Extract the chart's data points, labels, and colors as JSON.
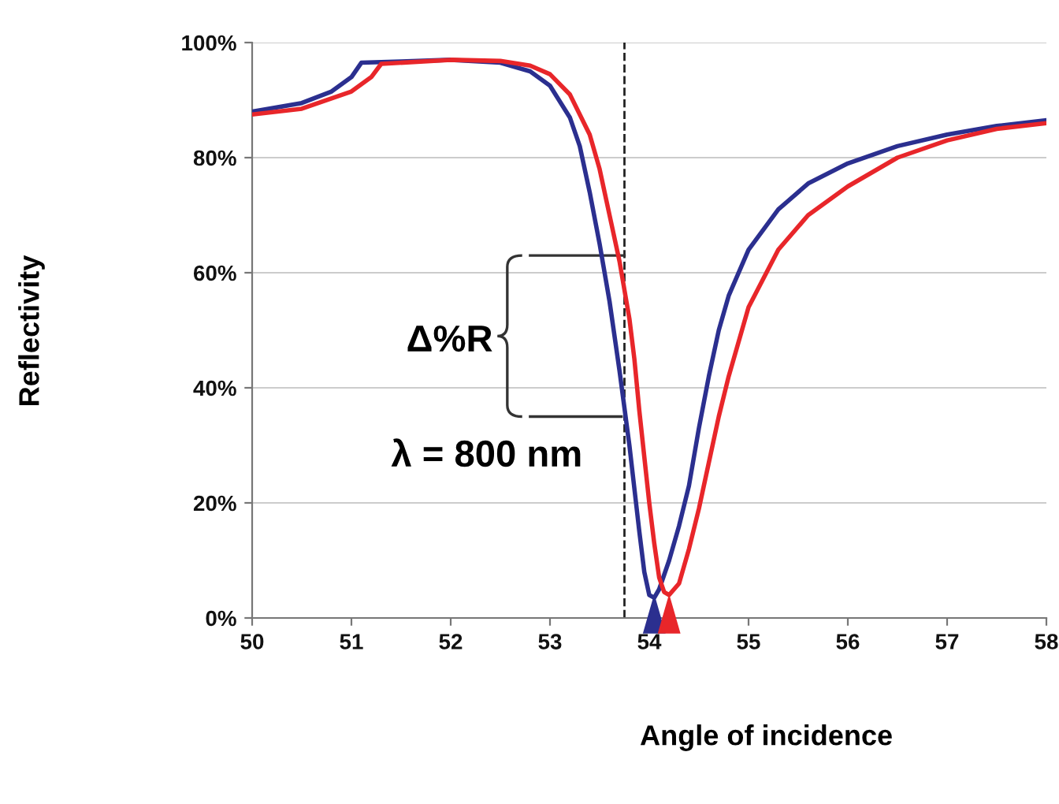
{
  "chart_data": {
    "type": "line",
    "xlabel": "Angle of incidence",
    "ylabel": "Reflectivity",
    "x": [
      50.0,
      50.5,
      50.8,
      51.0,
      51.1,
      51.5,
      52.0,
      52.5,
      52.8,
      53.0,
      53.2,
      53.3,
      53.4,
      53.5,
      53.6,
      53.7,
      53.8,
      53.9,
      53.95,
      54.0,
      54.05,
      54.1,
      54.2,
      54.3,
      54.4,
      54.5,
      54.6,
      54.7,
      54.8,
      55.0,
      55.3,
      55.6,
      56.0,
      56.5,
      57.0,
      57.5,
      58.0
    ],
    "series": [
      {
        "color": "#2b2f8f",
        "values": [
          88,
          89.5,
          91.5,
          94,
          96.5,
          96.7,
          97,
          96.5,
          95,
          92.5,
          87,
          82,
          74,
          65,
          55,
          43,
          30,
          15,
          8,
          4,
          3.5,
          5,
          10,
          16,
          23,
          33,
          42,
          50,
          56,
          64,
          71,
          75.5,
          79,
          82,
          84,
          85.5,
          86.5
        ]
      },
      {
        "color": "#e8262a",
        "x": [
          50.0,
          50.5,
          51.0,
          51.2,
          51.3,
          52.0,
          52.5,
          52.8,
          53.0,
          53.2,
          53.4,
          53.5,
          53.6,
          53.7,
          53.8,
          53.85,
          53.9,
          53.95,
          54.0,
          54.05,
          54.1,
          54.15,
          54.2,
          54.3,
          54.4,
          54.5,
          54.6,
          54.7,
          54.8,
          55.0,
          55.3,
          55.6,
          56.0,
          56.5,
          57.0,
          57.5,
          58.0
        ],
        "values": [
          87.5,
          88.5,
          91.5,
          94,
          96.3,
          97,
          96.8,
          96,
          94.5,
          91,
          84,
          78,
          70,
          62,
          52,
          45,
          36,
          28,
          20,
          13,
          7,
          4.5,
          4,
          6,
          12,
          19,
          27,
          35,
          42,
          54,
          64,
          70,
          75,
          80,
          83,
          85,
          86
        ]
      }
    ],
    "xlim": [
      50,
      58
    ],
    "xticks": [
      50,
      51,
      52,
      53,
      54,
      55,
      56,
      57,
      58
    ],
    "ylim": [
      0,
      100
    ],
    "yticks": [
      {
        "value": 0,
        "label": "0%"
      },
      {
        "value": 20,
        "label": "20%"
      },
      {
        "value": 40,
        "label": "40%"
      },
      {
        "value": 60,
        "label": "60%"
      },
      {
        "value": 80,
        "label": "80%"
      },
      {
        "value": 100,
        "label": "100%"
      }
    ],
    "grid": "y",
    "marker": "none",
    "line_style": "solid",
    "ref_lines": [
      {
        "axis": "x",
        "value": 53.75,
        "color": "#222222",
        "line_style": "dashed"
      }
    ],
    "annotations": [
      "Δ%R",
      "λ = 800 nm"
    ]
  }
}
